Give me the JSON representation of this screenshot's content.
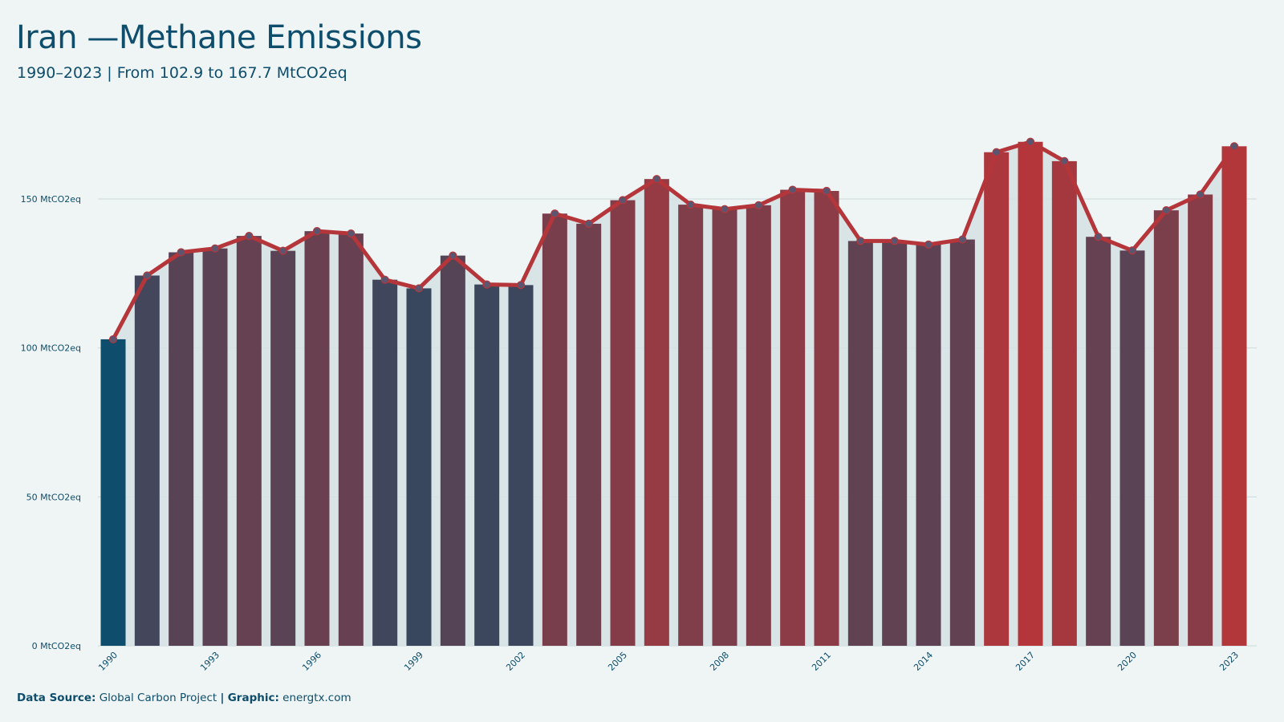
{
  "header": {
    "title": "Iran —Methane Emissions",
    "subtitle": "1990–2023 | From 102.9 to 167.7 MtCO2eq"
  },
  "footer": {
    "source_label": "Data Source:",
    "source_value": "Global Carbon Project",
    "separator": "|",
    "graphic_label": "Graphic:",
    "graphic_value": "energtx.com"
  },
  "colors": {
    "background": "#eff5f5",
    "low": "#0e4d6b",
    "high": "#b5363a",
    "line": "#b5363a",
    "area": "#d5e1e4",
    "grid": "#cdd9dc",
    "point_fill": "#5b5570"
  },
  "chart_data": {
    "type": "bar",
    "title": "Iran —Methane Emissions",
    "subtitle": "1990–2023 | From 102.9 to 167.7 MtCO2eq",
    "unit_suffix": " MtCO2eq",
    "ylim": [
      0,
      175
    ],
    "yticks": [
      0,
      50,
      100,
      150
    ],
    "ytick_labels": [
      "0 MtCO2eq",
      "50 MtCO2eq",
      "100 MtCO2eq",
      "150 MtCO2eq"
    ],
    "grid": true,
    "x": [
      1990,
      1991,
      1992,
      1993,
      1994,
      1995,
      1996,
      1997,
      1998,
      1999,
      2000,
      2001,
      2002,
      2003,
      2004,
      2005,
      2006,
      2007,
      2008,
      2009,
      2010,
      2011,
      2012,
      2013,
      2014,
      2015,
      2016,
      2017,
      2018,
      2019,
      2020,
      2021,
      2022,
      2023
    ],
    "xtick_labels": [
      "1990",
      "1993",
      "1996",
      "1999",
      "2002",
      "2005",
      "2008",
      "2011",
      "2014",
      "2017",
      "2020",
      "2023"
    ],
    "values": [
      102.9,
      124.3,
      132.1,
      133.4,
      137.6,
      132.6,
      139.2,
      138.4,
      122.9,
      120.0,
      131.0,
      121.3,
      121.1,
      145.1,
      141.7,
      149.6,
      156.7,
      148.1,
      146.6,
      147.9,
      153.1,
      152.7,
      135.9,
      135.9,
      134.7,
      136.4,
      165.7,
      169.2,
      162.7,
      137.3,
      132.7,
      146.2,
      151.5,
      167.7
    ]
  }
}
